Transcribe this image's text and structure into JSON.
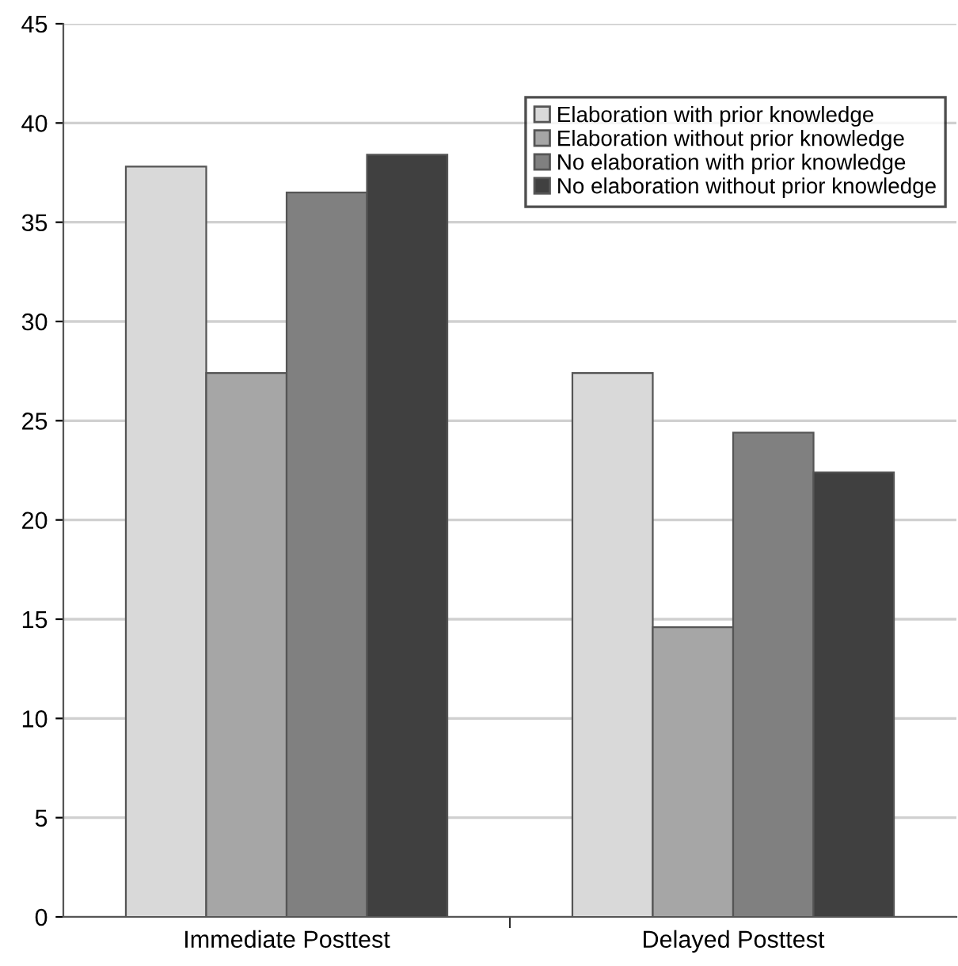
{
  "chart_data": {
    "type": "bar",
    "categories": [
      "Immediate Posttest",
      "Delayed Posttest"
    ],
    "series": [
      {
        "name": "Elaboration with prior knowledge",
        "color": "#d9d9d9",
        "values": [
          37.8,
          27.4
        ]
      },
      {
        "name": "Elaboration without prior knowledge",
        "color": "#a6a6a6",
        "values": [
          27.4,
          14.6
        ]
      },
      {
        "name": "No elaboration with prior knowledge",
        "color": "#808080",
        "values": [
          36.5,
          24.4
        ]
      },
      {
        "name": "No elaboration without prior knowledge",
        "color": "#404040",
        "values": [
          38.4,
          22.4
        ]
      }
    ],
    "ylim": [
      0,
      45
    ],
    "yticks": [
      0,
      5,
      10,
      15,
      20,
      25,
      30,
      35,
      40,
      45
    ],
    "grid": "y",
    "legend": "top right"
  }
}
